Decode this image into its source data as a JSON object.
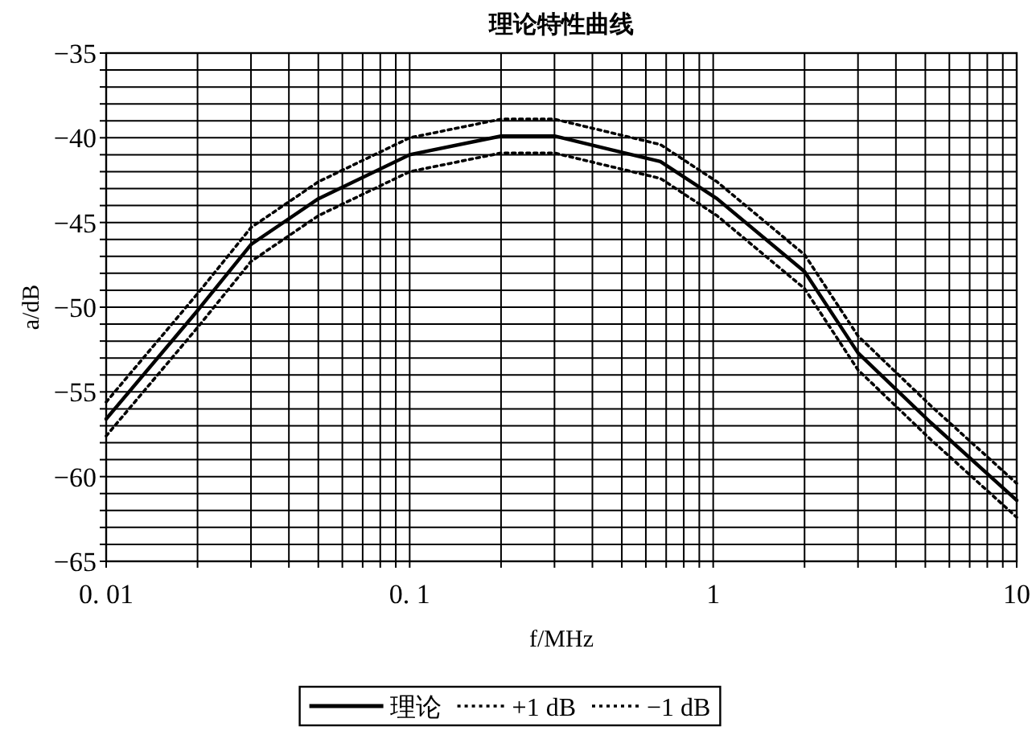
{
  "chart_data": {
    "type": "line",
    "title": "理论特性曲线",
    "xlabel": "f/MHz",
    "ylabel": "a/dB",
    "log": "x",
    "grid": true,
    "legend": "bottom",
    "x": [
      0.01,
      0.02,
      0.03,
      0.05,
      0.1,
      0.2,
      0.3,
      0.67,
      1.03,
      2.0,
      3.0,
      5.2,
      10
    ],
    "series": [
      {
        "name": "理论",
        "color": "#000000",
        "line_style": "solid",
        "values": [
          -56.6,
          -50.2,
          -46.3,
          -43.6,
          -41.0,
          -39.9,
          -39.9,
          -41.4,
          -43.6,
          -47.9,
          -52.7,
          -56.8,
          -61.4
        ]
      },
      {
        "name": "+1 dB",
        "color": "#000000",
        "line_style": "dotted",
        "values": [
          -55.6,
          -49.2,
          -45.3,
          -42.6,
          -40.0,
          -38.9,
          -38.9,
          -40.4,
          -42.6,
          -46.9,
          -51.7,
          -55.8,
          -60.4
        ]
      },
      {
        "name": "−1 dB",
        "color": "#000000",
        "line_style": "dotted",
        "values": [
          -57.6,
          -51.2,
          -47.3,
          -44.6,
          -42.0,
          -40.9,
          -40.9,
          -42.4,
          -44.6,
          -48.9,
          -53.7,
          -57.8,
          -62.4
        ]
      }
    ],
    "xlim": [
      0.01,
      10
    ],
    "xticks": [
      {
        "value": 0.01,
        "label": "0. 01"
      },
      {
        "value": 0.02,
        "label": null
      },
      {
        "value": 0.03,
        "label": null
      },
      {
        "value": 0.04,
        "label": null
      },
      {
        "value": 0.05,
        "label": null
      },
      {
        "value": 0.06,
        "label": null
      },
      {
        "value": 0.07,
        "label": null
      },
      {
        "value": 0.08,
        "label": null
      },
      {
        "value": 0.09,
        "label": null
      },
      {
        "value": 0.1,
        "label": "0. 1"
      },
      {
        "value": 0.2,
        "label": null
      },
      {
        "value": 0.3,
        "label": null
      },
      {
        "value": 0.4,
        "label": null
      },
      {
        "value": 0.5,
        "label": null
      },
      {
        "value": 0.6,
        "label": null
      },
      {
        "value": 0.7,
        "label": null
      },
      {
        "value": 0.8,
        "label": null
      },
      {
        "value": 0.9,
        "label": null
      },
      1,
      {
        "value": 2,
        "label": null
      },
      {
        "value": 3,
        "label": null
      },
      {
        "value": 4,
        "label": null
      },
      {
        "value": 5,
        "label": null
      },
      {
        "value": 6,
        "label": null
      },
      {
        "value": 7,
        "label": null
      },
      {
        "value": 8,
        "label": null
      },
      {
        "value": 9,
        "label": null
      },
      10
    ],
    "ylim": [
      -65,
      -35
    ],
    "yticks": [
      {
        "value": -65,
        "label": "−65"
      },
      {
        "value": -64,
        "label": null
      },
      {
        "value": -63,
        "label": null
      },
      {
        "value": -62,
        "label": null
      },
      {
        "value": -61,
        "label": null
      },
      {
        "value": -60,
        "label": "−60"
      },
      {
        "value": -59,
        "label": null
      },
      {
        "value": -58,
        "label": null
      },
      {
        "value": -57,
        "label": null
      },
      {
        "value": -56,
        "label": null
      },
      {
        "value": -55,
        "label": "−55"
      },
      {
        "value": -54,
        "label": null
      },
      {
        "value": -53,
        "label": null
      },
      {
        "value": -52,
        "label": null
      },
      {
        "value": -51,
        "label": null
      },
      {
        "value": -50,
        "label": "−50"
      },
      {
        "value": -49,
        "label": null
      },
      {
        "value": -48,
        "label": null
      },
      {
        "value": -47,
        "label": null
      },
      {
        "value": -46,
        "label": null
      },
      {
        "value": -45,
        "label": "−45"
      },
      {
        "value": -44,
        "label": null
      },
      {
        "value": -43,
        "label": null
      },
      {
        "value": -42,
        "label": null
      },
      {
        "value": -41,
        "label": null
      },
      {
        "value": -40,
        "label": "−40"
      },
      {
        "value": -39,
        "label": null
      },
      {
        "value": -38,
        "label": null
      },
      {
        "value": -37,
        "label": null
      },
      {
        "value": -36,
        "label": null
      },
      {
        "value": -35,
        "label": "−35"
      }
    ]
  }
}
